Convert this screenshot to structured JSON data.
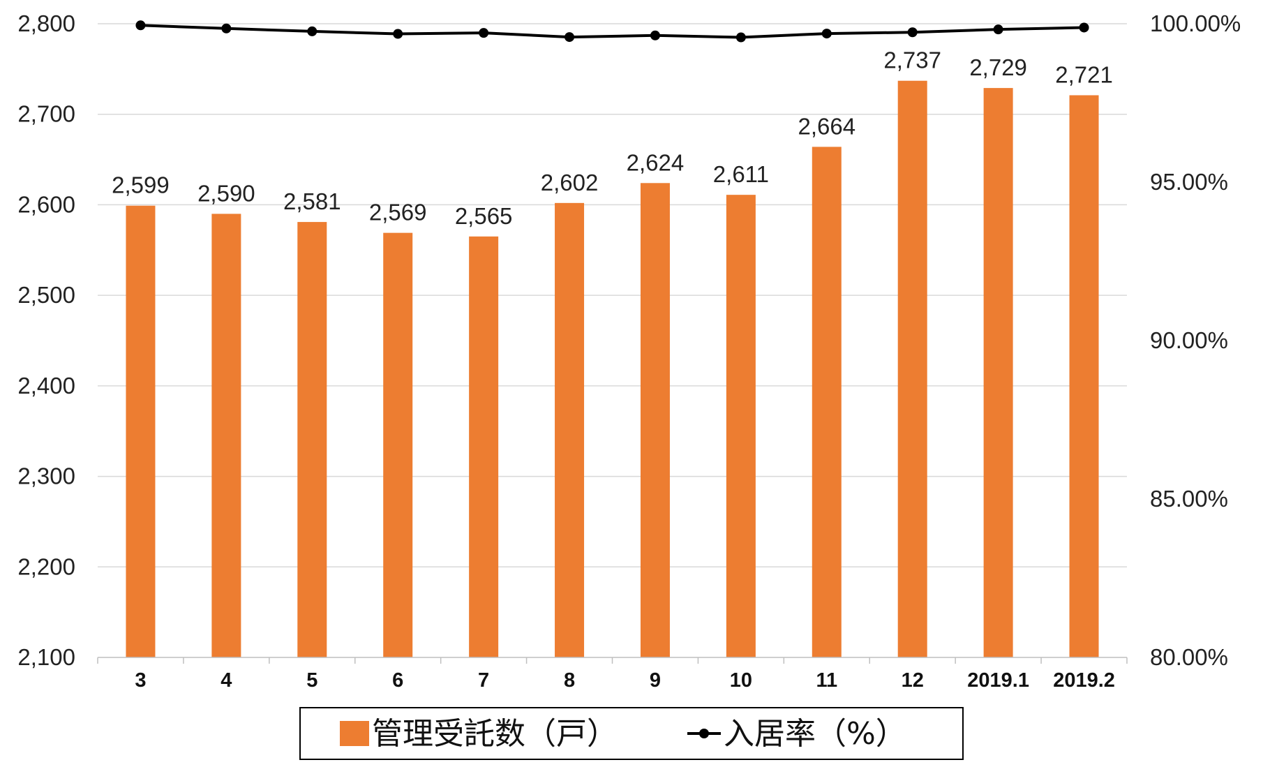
{
  "chart_data": {
    "type": "bar",
    "categories": [
      "3",
      "4",
      "5",
      "6",
      "7",
      "8",
      "9",
      "10",
      "11",
      "12",
      "2019.1",
      "2019.2"
    ],
    "series": [
      {
        "name": "管理受託数（戸）",
        "type": "bar",
        "axis": "left",
        "color": "#ED7D31",
        "values": [
          2599,
          2590,
          2581,
          2569,
          2565,
          2602,
          2624,
          2611,
          2664,
          2737,
          2729,
          2721
        ],
        "data_labels": [
          "2,599",
          "2,590",
          "2,581",
          "2,569",
          "2,565",
          "2,602",
          "2,624",
          "2,611",
          "2,664",
          "2,737",
          "2,729",
          "2,721"
        ]
      },
      {
        "name": "入居率（%）",
        "type": "line",
        "axis": "right",
        "color": "#000000",
        "marker": "circle",
        "values": [
          99.95,
          99.85,
          99.76,
          99.68,
          99.71,
          99.58,
          99.63,
          99.57,
          99.69,
          99.73,
          99.82,
          99.88
        ]
      }
    ],
    "y_left": {
      "range": [
        2100,
        2800
      ],
      "ticks": [
        2100,
        2200,
        2300,
        2400,
        2500,
        2600,
        2700,
        2800
      ],
      "tick_labels": [
        "2,100",
        "2,200",
        "2,300",
        "2,400",
        "2,500",
        "2,600",
        "2,700",
        "2,800"
      ]
    },
    "y_right": {
      "range": [
        80,
        100
      ],
      "ticks": [
        80,
        85,
        90,
        95,
        100
      ],
      "tick_labels": [
        "80.00%",
        "85.00%",
        "90.00%",
        "95.00%",
        "100.00%"
      ]
    },
    "grid": true,
    "legend": {
      "position": "bottom",
      "items": [
        "管理受託数（戸）",
        "入居率（%）"
      ]
    }
  }
}
